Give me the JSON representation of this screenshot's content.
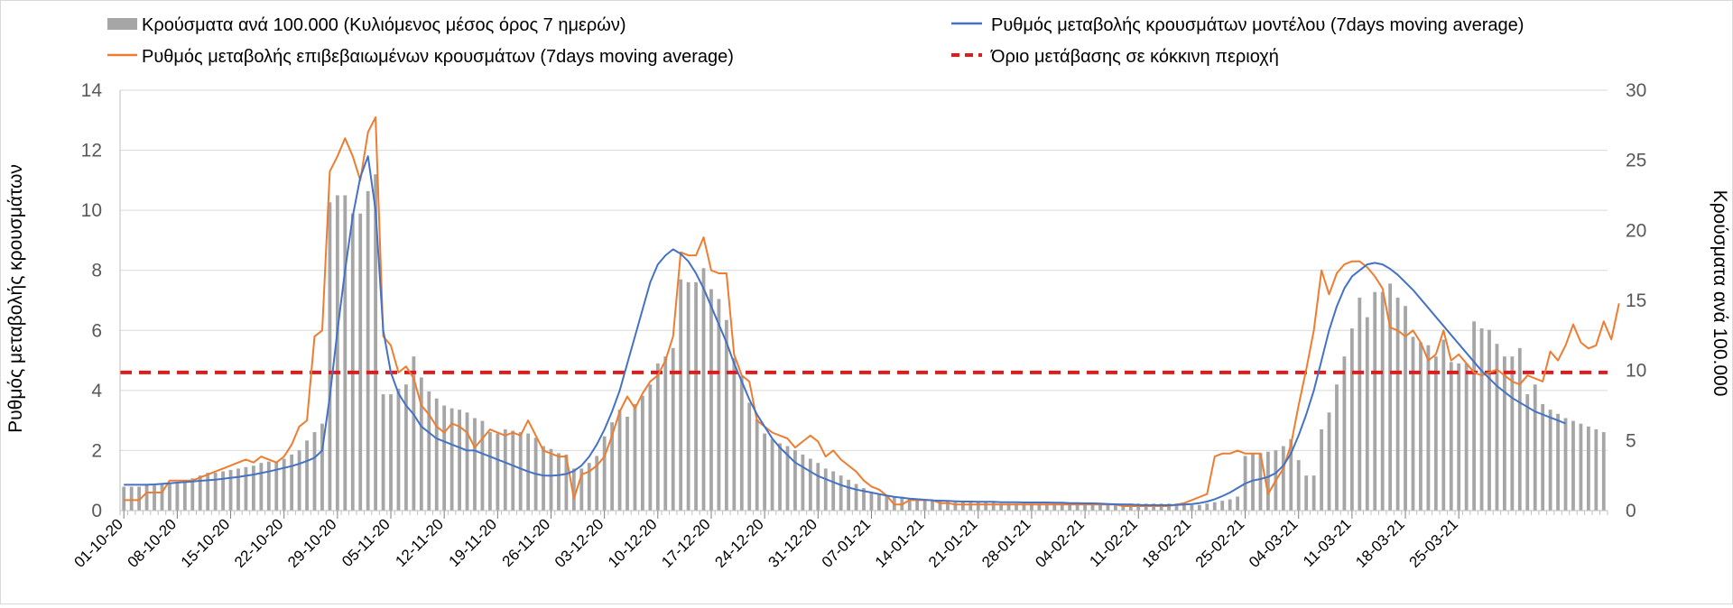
{
  "chart_data": {
    "type": "bar+line",
    "legend": {
      "bars": "Κρούσματα ανά 100.000 (Κυλιόμενος μέσος όρος 7 ημερών)",
      "model": "Ρυθμός μεταβολής κρουσμάτων μοντέλου (7days moving average)",
      "confirmed": "Ρυθμός μεταβολής επιβεβαιωμένων κρουσμάτων (7days moving average)",
      "threshold": "Όριο μετάβασης σε κόκκινη περιοχή"
    },
    "ylabel_left": "Ρυθμός μεταβολής κρουσμάτων",
    "ylabel_right": "Κρούσματα ανά 100.000",
    "ylim_left": [
      0,
      14
    ],
    "ylim_right": [
      0,
      30
    ],
    "yticks_left": [
      "0",
      "2",
      "4",
      "6",
      "8",
      "10",
      "12",
      "14"
    ],
    "yticks_right": [
      "0",
      "5",
      "10",
      "15",
      "20",
      "25",
      "30"
    ],
    "xticks": [
      "01-10-20",
      "08-10-20",
      "15-10-20",
      "22-10-20",
      "29-10-20",
      "05-11-20",
      "12-11-20",
      "19-11-20",
      "26-11-20",
      "03-12-20",
      "10-12-20",
      "17-12-20",
      "24-12-20",
      "31-12-20",
      "07-01-21",
      "14-01-21",
      "21-01-21",
      "28-01-21",
      "04-02-21",
      "11-02-21",
      "18-02-21",
      "25-02-21",
      "04-03-21",
      "11-03-21",
      "18-03-21",
      "25-03-21"
    ],
    "grid": true,
    "threshold_value": 4.6,
    "colors": {
      "bars": "#a6a6a6",
      "model": "#4472c4",
      "confirmed": "#ed7d31",
      "threshold": "#e31a1c"
    },
    "bars_per100k": [
      1.7,
      1.7,
      1.7,
      1.8,
      1.8,
      1.9,
      2.0,
      2.0,
      2.1,
      2.3,
      2.5,
      2.7,
      2.7,
      2.8,
      2.9,
      3.0,
      3.1,
      3.2,
      3.4,
      3.5,
      3.5,
      3.7,
      4.0,
      4.3,
      5.0,
      5.6,
      6.2,
      22.0,
      22.5,
      22.5,
      21.2,
      21.2,
      22.8,
      24.0,
      8.3,
      8.3,
      8.7,
      9.0,
      11.0,
      9.5,
      8.5,
      8.0,
      7.5,
      7.3,
      7.2,
      7.0,
      6.6,
      6.4,
      5.6,
      5.5,
      5.8,
      5.7,
      5.6,
      5.5,
      5.2,
      4.6,
      4.4,
      4.1,
      4.0,
      3.0,
      3.0,
      3.4,
      3.9,
      5.3,
      6.3,
      7.2,
      6.7,
      7.6,
      8.2,
      9.0,
      10.5,
      11.0,
      11.6,
      16.5,
      16.3,
      16.3,
      17.3,
      15.8,
      15.1,
      13.6,
      10.9,
      9.6,
      7.7,
      6.5,
      5.5,
      5.1,
      4.8,
      4.6,
      4.3,
      4.0,
      3.7,
      3.4,
      3.0,
      2.8,
      2.5,
      2.2,
      1.9,
      1.6,
      1.3,
      1.2,
      1.1,
      1.0,
      1.0,
      0.9,
      0.8,
      0.8,
      0.7,
      0.7,
      0.7,
      0.6,
      0.6,
      0.6,
      0.6,
      0.6,
      0.6,
      0.5,
      0.5,
      0.5,
      0.5,
      0.5,
      0.5,
      0.5,
      0.5,
      0.5,
      0.5,
      0.5,
      0.5,
      0.5,
      0.5,
      0.5,
      0.5,
      0.5,
      0.5,
      0.5,
      0.5,
      0.5,
      0.5,
      0.5,
      0.5,
      0.4,
      0.4,
      0.4,
      0.5,
      0.6,
      0.7,
      0.8,
      1.0,
      3.9,
      4.1,
      4.1,
      4.2,
      4.3,
      4.6,
      5.1,
      3.6,
      2.5,
      2.5,
      5.8,
      7.0,
      9.0,
      11.0,
      13.0,
      15.2,
      13.8,
      15.6,
      15.6,
      16.2,
      15.2,
      14.6,
      12.4,
      12.0,
      11.8,
      11.0,
      12.2,
      10.6,
      10.5,
      10.5,
      13.5,
      13.0,
      12.9,
      11.9,
      11.0,
      11.0,
      11.6,
      8.3,
      9.0,
      7.6,
      7.2,
      6.9,
      6.6,
      6.4,
      6.2,
      6.0,
      5.8,
      5.6
    ],
    "model_rate": [
      0.86,
      0.86,
      0.86,
      0.86,
      0.87,
      0.89,
      0.91,
      0.93,
      0.95,
      0.97,
      0.99,
      1.01,
      1.03,
      1.06,
      1.09,
      1.12,
      1.16,
      1.2,
      1.25,
      1.3,
      1.36,
      1.42,
      1.48,
      1.56,
      1.65,
      1.76,
      2.0,
      3.8,
      6.0,
      8.0,
      9.8,
      11.1,
      11.8,
      10.0,
      6.0,
      4.6,
      3.9,
      3.5,
      3.2,
      2.8,
      2.6,
      2.4,
      2.3,
      2.2,
      2.1,
      2.0,
      2.0,
      1.9,
      1.8,
      1.7,
      1.6,
      1.5,
      1.4,
      1.3,
      1.22,
      1.17,
      1.16,
      1.18,
      1.22,
      1.32,
      1.5,
      1.8,
      2.2,
      2.7,
      3.3,
      4.0,
      4.9,
      5.8,
      6.7,
      7.6,
      8.2,
      8.5,
      8.7,
      8.55,
      8.3,
      7.9,
      7.4,
      6.8,
      6.2,
      5.6,
      4.9,
      4.3,
      3.7,
      3.2,
      2.8,
      2.4,
      2.1,
      1.85,
      1.6,
      1.45,
      1.3,
      1.15,
      1.05,
      0.95,
      0.85,
      0.77,
      0.7,
      0.65,
      0.6,
      0.55,
      0.5,
      0.46,
      0.43,
      0.4,
      0.38,
      0.36,
      0.34,
      0.33,
      0.32,
      0.31,
      0.3,
      0.3,
      0.29,
      0.29,
      0.29,
      0.28,
      0.28,
      0.28,
      0.27,
      0.27,
      0.27,
      0.27,
      0.26,
      0.26,
      0.25,
      0.25,
      0.24,
      0.24,
      0.23,
      0.22,
      0.21,
      0.2,
      0.2,
      0.19,
      0.18,
      0.18,
      0.18,
      0.18,
      0.19,
      0.2,
      0.22,
      0.25,
      0.3,
      0.38,
      0.48,
      0.6,
      0.75,
      0.9,
      1.0,
      1.05,
      1.12,
      1.25,
      1.5,
      1.9,
      2.5,
      3.2,
      4.0,
      5.0,
      6.0,
      6.8,
      7.4,
      7.8,
      8.0,
      8.2,
      8.25,
      8.2,
      8.05,
      7.85,
      7.6,
      7.35,
      7.05,
      6.75,
      6.45,
      6.15,
      5.85,
      5.55,
      5.25,
      4.95,
      4.65,
      4.4,
      4.15,
      3.95,
      3.75,
      3.6,
      3.45,
      3.3,
      3.2,
      3.1,
      3.0,
      2.9
    ],
    "confirmed_rate": [
      0.35,
      0.35,
      0.35,
      0.6,
      0.6,
      0.6,
      1.0,
      1.0,
      1.0,
      1.0,
      1.1,
      1.2,
      1.3,
      1.4,
      1.5,
      1.6,
      1.7,
      1.6,
      1.8,
      1.7,
      1.6,
      1.8,
      2.2,
      2.8,
      3.0,
      5.8,
      6.0,
      11.3,
      11.8,
      12.4,
      11.8,
      11.0,
      12.6,
      13.1,
      5.8,
      5.5,
      4.6,
      4.8,
      4.4,
      3.5,
      3.2,
      2.8,
      2.6,
      2.9,
      2.8,
      2.6,
      2.1,
      2.4,
      2.7,
      2.6,
      2.5,
      2.6,
      2.5,
      3.0,
      2.5,
      2.0,
      1.9,
      1.8,
      1.8,
      0.4,
      1.2,
      1.3,
      1.5,
      1.8,
      2.5,
      3.3,
      3.8,
      3.4,
      3.9,
      4.3,
      4.5,
      5.0,
      5.8,
      8.6,
      8.5,
      8.5,
      9.1,
      8.0,
      7.9,
      7.9,
      5.2,
      4.5,
      4.3,
      3.0,
      2.8,
      2.6,
      2.5,
      2.4,
      2.1,
      2.3,
      2.5,
      2.3,
      1.8,
      2.0,
      1.7,
      1.5,
      1.3,
      1.0,
      0.8,
      0.7,
      0.5,
      0.2,
      0.2,
      0.35,
      0.35,
      0.35,
      0.35,
      0.25,
      0.25,
      0.2,
      0.2,
      0.2,
      0.2,
      0.2,
      0.2,
      0.2,
      0.2,
      0.2,
      0.2,
      0.2,
      0.2,
      0.2,
      0.2,
      0.2,
      0.2,
      0.2,
      0.2,
      0.2,
      0.2,
      0.2,
      0.2,
      0.15,
      0.15,
      0.15,
      0.15,
      0.15,
      0.15,
      0.15,
      0.2,
      0.25,
      0.35,
      0.45,
      0.55,
      1.8,
      1.9,
      1.9,
      2.0,
      1.9,
      1.9,
      1.9,
      0.55,
      1.0,
      1.4,
      2.2,
      3.5,
      4.7,
      6.0,
      8.0,
      7.2,
      7.9,
      8.2,
      8.3,
      8.3,
      8.1,
      7.8,
      7.4,
      6.1,
      6.0,
      5.8,
      6.0,
      5.6,
      5.0,
      5.2,
      6.0,
      5.0,
      5.2,
      4.9,
      4.6,
      4.5,
      4.6,
      4.7,
      4.5,
      4.3,
      4.2,
      4.5,
      4.4,
      4.3,
      5.3,
      5.0,
      5.5,
      6.2,
      5.6,
      5.4,
      5.5,
      6.3,
      5.7,
      6.9
    ]
  }
}
